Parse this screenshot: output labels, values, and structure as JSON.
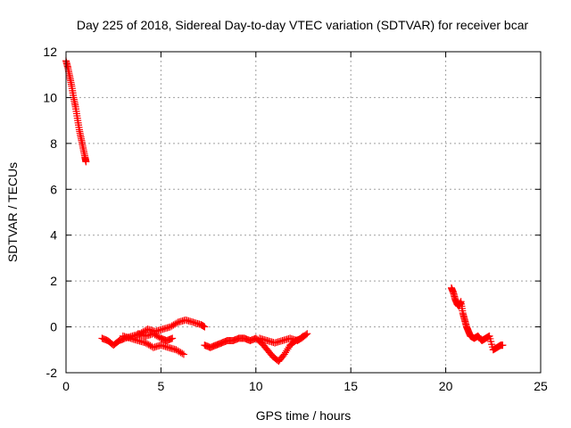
{
  "chart_data": {
    "type": "scatter",
    "title": "Day 225 of 2018, Sidereal Day-to-day VTEC variation (SDTVAR) for receiver bcar",
    "xlabel": "GPS time / hours",
    "ylabel": "SDTVAR / TECUs",
    "xlim": [
      0,
      25
    ],
    "ylim": [
      -2,
      12
    ],
    "xticks": [
      0,
      5,
      10,
      15,
      20,
      25
    ],
    "yticks": [
      -2,
      0,
      2,
      4,
      6,
      8,
      10,
      12
    ],
    "grid": true,
    "marker": "+",
    "series": [
      {
        "name": "SDTVAR",
        "color": "#ff0000",
        "segments": [
          {
            "x": [
              0.0,
              0.1,
              0.2,
              0.3,
              0.4,
              0.5,
              0.6,
              0.7,
              0.8,
              0.9,
              1.0,
              1.05
            ],
            "y": [
              11.6,
              11.3,
              10.9,
              10.5,
              10.0,
              9.6,
              9.1,
              8.6,
              8.2,
              7.8,
              7.4,
              7.2
            ]
          },
          {
            "x": [
              1.9,
              2.2,
              2.5,
              2.8,
              3.1,
              3.5,
              3.9,
              4.3,
              4.7,
              5.1,
              5.5,
              5.9,
              6.3,
              6.7,
              7.1,
              7.3
            ],
            "y": [
              -0.5,
              -0.6,
              -0.8,
              -0.6,
              -0.5,
              -0.4,
              -0.3,
              -0.1,
              -0.2,
              -0.1,
              0.0,
              0.2,
              0.3,
              0.2,
              0.1,
              0.0
            ]
          },
          {
            "x": [
              3.0,
              3.4,
              3.8,
              4.2,
              4.6,
              5.0,
              5.4,
              5.8,
              6.2
            ],
            "y": [
              -0.4,
              -0.5,
              -0.6,
              -0.7,
              -0.9,
              -0.8,
              -0.9,
              -1.0,
              -1.2
            ]
          },
          {
            "x": [
              3.8,
              4.2,
              4.6,
              5.0,
              5.3,
              5.6
            ],
            "y": [
              -0.3,
              -0.4,
              -0.3,
              -0.5,
              -0.6,
              -0.5
            ]
          },
          {
            "x": [
              7.3,
              7.6,
              7.9,
              8.2,
              8.5,
              8.8,
              9.1,
              9.4,
              9.7,
              10.0,
              10.3,
              10.6,
              10.9,
              11.2,
              11.5,
              11.8,
              12.1,
              12.4,
              12.7
            ],
            "y": [
              -0.8,
              -0.9,
              -0.8,
              -0.7,
              -0.6,
              -0.6,
              -0.5,
              -0.5,
              -0.6,
              -0.5,
              -0.7,
              -1.0,
              -1.3,
              -1.5,
              -1.2,
              -0.8,
              -0.6,
              -0.5,
              -0.3
            ]
          },
          {
            "x": [
              10.2,
              10.6,
              11.0,
              11.4,
              11.8,
              12.2,
              12.5
            ],
            "y": [
              -0.5,
              -0.6,
              -0.7,
              -0.6,
              -0.5,
              -0.6,
              -0.4
            ]
          },
          {
            "x": [
              20.3,
              20.4,
              20.5,
              20.6,
              20.7,
              20.8,
              20.9,
              21.0,
              21.1,
              21.2,
              21.3,
              21.5,
              21.7,
              21.9,
              22.1,
              22.3,
              22.5,
              22.7,
              22.9,
              23.0
            ],
            "y": [
              1.7,
              1.5,
              1.2,
              1.0,
              0.9,
              1.1,
              0.6,
              0.3,
              0.0,
              -0.2,
              -0.4,
              -0.5,
              -0.4,
              -0.6,
              -0.5,
              -0.4,
              -1.0,
              -0.9,
              -0.8,
              -0.8
            ]
          }
        ]
      }
    ]
  }
}
